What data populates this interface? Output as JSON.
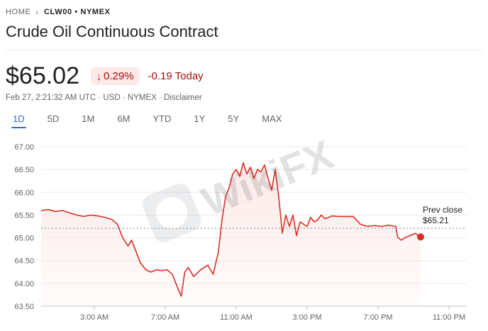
{
  "breadcrumb": {
    "home": "HOME",
    "current": "CLW00 • NYMEX"
  },
  "title": "Crude Oil Continuous Contract",
  "quote": {
    "price": "$65.02",
    "change_percent": "0.29%",
    "change_today": "-0.19 Today",
    "meta": "Feb 27, 2:21:32 AM UTC · USD · NYMEX · Disclaimer"
  },
  "tabs": [
    {
      "label": "1D",
      "active": true
    },
    {
      "label": "5D",
      "active": false
    },
    {
      "label": "1M",
      "active": false
    },
    {
      "label": "6M",
      "active": false
    },
    {
      "label": "YTD",
      "active": false
    },
    {
      "label": "1Y",
      "active": false
    },
    {
      "label": "5Y",
      "active": false
    },
    {
      "label": "MAX",
      "active": false
    }
  ],
  "watermark": "WikiFX",
  "colors": {
    "line": "#d93025",
    "accent": "#1a73e8",
    "negative_bg": "#fce8e6",
    "negative_text": "#a50e0e"
  },
  "chart_data": {
    "type": "area",
    "ylim": [
      63.5,
      67.0
    ],
    "y_ticks": [
      "67.00",
      "66.50",
      "66.00",
      "65.50",
      "65.00",
      "64.50",
      "64.00",
      "63.50"
    ],
    "y_tick_values": [
      67.0,
      66.5,
      66.0,
      65.5,
      65.0,
      64.5,
      64.0,
      63.5
    ],
    "xlim": [
      0,
      24
    ],
    "x_ticks": [
      "3:00 AM",
      "7:00 AM",
      "11:00 AM",
      "3:00 PM",
      "7:00 PM",
      "11:00 PM"
    ],
    "x_tick_values": [
      3,
      7,
      11,
      15,
      19,
      23
    ],
    "prev_close": 65.21,
    "prev_close_label": "Prev close",
    "prev_close_value": "$65.21",
    "last_point": [
      21.4,
      65.02
    ],
    "series": [
      {
        "x": [
          0,
          0.4,
          0.8,
          1.2,
          1.6,
          2.0,
          2.4,
          2.8,
          3.2,
          3.6,
          4.0,
          4.3,
          4.6,
          4.9,
          5.1,
          5.3,
          5.6,
          5.9,
          6.2,
          6.5,
          6.8,
          7.1,
          7.4,
          7.7,
          7.9,
          8.1,
          8.3,
          8.6,
          9.0,
          9.4,
          9.7,
          10.0,
          10.2,
          10.4,
          10.6,
          10.8,
          11.0,
          11.2,
          11.4,
          11.6,
          11.8,
          12.0,
          12.2,
          12.4,
          12.6,
          12.8,
          13.0,
          13.2,
          13.4,
          13.6,
          13.8,
          14.0,
          14.2,
          14.4,
          14.6,
          14.8,
          15.0,
          15.2,
          15.4,
          15.6,
          15.8,
          16.0,
          16.4,
          16.8,
          17.2,
          17.6,
          18.0,
          18.4,
          18.8,
          19.2,
          19.6,
          20.0,
          20.1,
          20.3,
          20.5,
          20.8,
          21.1,
          21.4
        ],
        "y": [
          65.6,
          65.62,
          65.58,
          65.6,
          65.55,
          65.5,
          65.47,
          65.5,
          65.48,
          65.45,
          65.4,
          65.3,
          65.0,
          64.82,
          64.95,
          64.75,
          64.45,
          64.3,
          64.25,
          64.3,
          64.28,
          64.3,
          64.2,
          63.9,
          63.72,
          64.25,
          64.35,
          64.15,
          64.3,
          64.4,
          64.2,
          64.7,
          65.4,
          65.9,
          66.1,
          66.4,
          66.5,
          66.35,
          66.65,
          66.4,
          66.55,
          66.3,
          66.5,
          66.45,
          66.6,
          66.3,
          66.05,
          66.5,
          65.9,
          65.1,
          65.5,
          65.25,
          65.5,
          65.05,
          65.35,
          65.3,
          65.25,
          65.45,
          65.35,
          65.4,
          65.5,
          65.42,
          65.48,
          65.47,
          65.47,
          65.47,
          65.3,
          65.25,
          65.27,
          65.25,
          65.28,
          65.25,
          65.02,
          64.95,
          65.0,
          65.05,
          65.1,
          65.02
        ]
      }
    ]
  }
}
